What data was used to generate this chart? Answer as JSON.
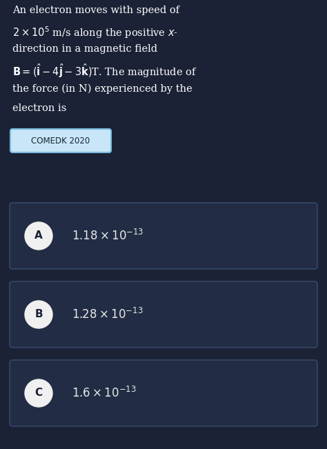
{
  "bg_color": "#1b2236",
  "text_color": "#ffffff",
  "tag_text": "COMEDK 2020",
  "tag_bg": "#c8e6f7",
  "tag_border": "#7bbde0",
  "tag_text_color": "#1b2236",
  "options": [
    {
      "label": "A",
      "math": "$1.18 \\times 10^{-13}$"
    },
    {
      "label": "B",
      "math": "$1.28 \\times 10^{-13}$"
    },
    {
      "label": "C",
      "math": "$1.6 \\times 10^{-13}$"
    }
  ],
  "option_box_color": "#222d45",
  "option_box_edge": "#384d6e",
  "option_label_bg": "#f0f0f0",
  "option_label_color": "#1b2236",
  "option_text_color": "#e8e8e8",
  "figw": 4.74,
  "figh": 6.51,
  "dpi": 100
}
